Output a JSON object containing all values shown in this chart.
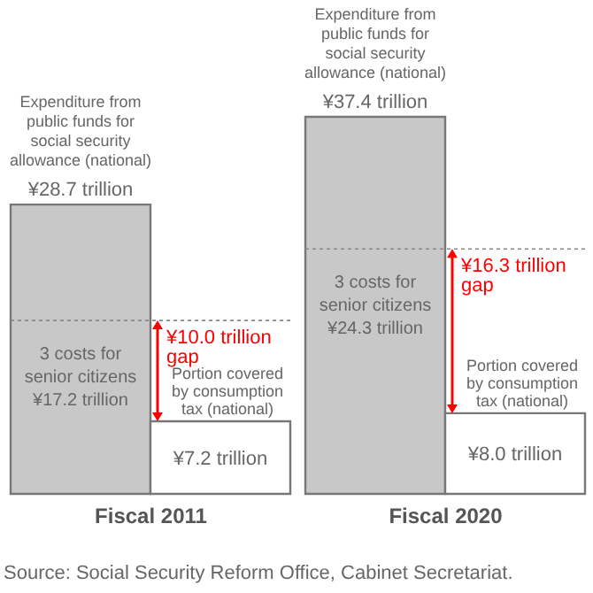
{
  "chart_data": {
    "type": "bar",
    "categories": [
      "Fiscal 2011",
      "Fiscal 2020"
    ],
    "series": [
      {
        "name": "Expenditure from public funds for social security allowance (national)",
        "color": "#c8c8c8",
        "values": [
          28.7,
          37.4
        ],
        "value_labels": [
          "¥28.7 trillion",
          "¥37.4 trillion"
        ]
      },
      {
        "name": "Portion covered by consumption tax (national)",
        "color": "#ffffff",
        "values": [
          7.2,
          8.0
        ],
        "value_labels": [
          "¥7.2 trillion",
          "¥8.0 trillion"
        ]
      }
    ],
    "annotations": [
      {
        "text": "3 costs for senior citizens ¥17.2 trillion",
        "x": "Fiscal 2011",
        "y": 17.2
      },
      {
        "text": "¥10.0 trillion gap",
        "x": "Fiscal 2011",
        "y": 17.2
      },
      {
        "text": "3 costs for senior citizens ¥24.3 trillion",
        "x": "Fiscal 2020",
        "y": 24.3
      },
      {
        "text": "¥16.3 trillion gap",
        "x": "Fiscal 2020",
        "y": 24.3
      },
      "Source: Social Security Reform Office, Cabinet Secretariat."
    ]
  }
}
